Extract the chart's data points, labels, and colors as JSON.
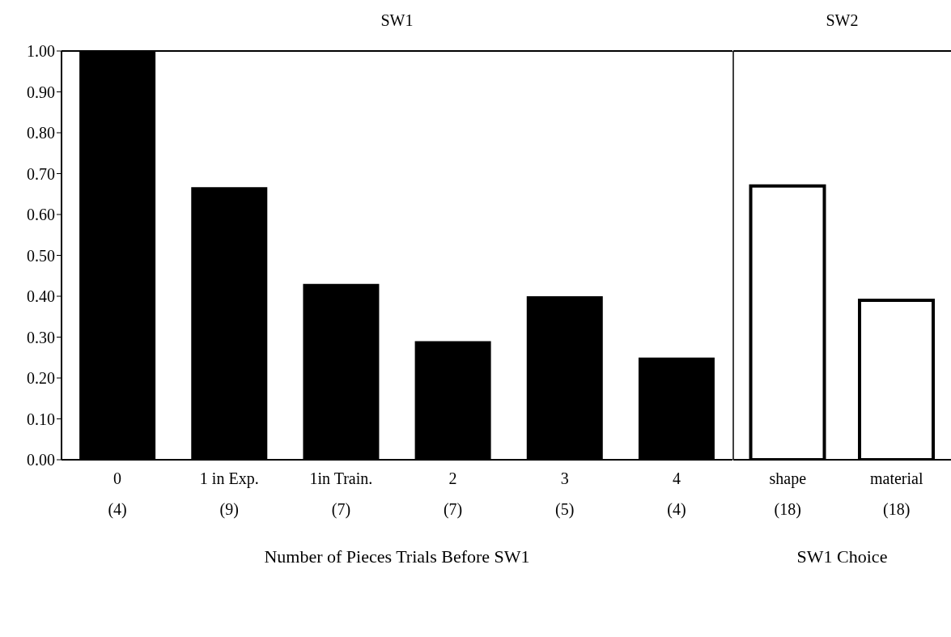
{
  "chart_data": [
    {
      "type": "bar",
      "title": "SW1",
      "xlabel": "Number of Pieces Trials Before SW1",
      "categories": [
        "0\n(4)",
        "1 in Exp.\n(9)",
        "1in Train.\n(7)",
        "2\n(7)",
        "3\n(5)",
        "4\n(4)"
      ],
      "values": [
        1.0,
        0.667,
        0.43,
        0.29,
        0.4,
        0.25
      ],
      "color": "#000000",
      "ylim": [
        0,
        1
      ],
      "yticks": [
        {
          "value": 0,
          "label": "0.00"
        },
        {
          "value": 0.1,
          "label": "0.10"
        },
        {
          "value": 0.2,
          "label": "0.20"
        },
        {
          "value": 0.3,
          "label": "0.30"
        },
        {
          "value": 0.4,
          "label": "0.40"
        },
        {
          "value": 0.5,
          "label": "0.50"
        },
        {
          "value": 0.6,
          "label": "0.60"
        },
        {
          "value": 0.7,
          "label": "0.70"
        },
        {
          "value": 0.8,
          "label": "0.80"
        },
        {
          "value": 0.9,
          "label": "0.90"
        },
        {
          "value": 1,
          "label": "1.00"
        }
      ],
      "grid": false
    },
    {
      "type": "bar",
      "title": "SW2",
      "xlabel": "SW1 Choice",
      "categories": [
        "shape\n(18)",
        "material\n(18)"
      ],
      "values": [
        0.67,
        0.39
      ],
      "color": "#ffffff",
      "ylim": [
        0,
        1
      ],
      "tick_labels": "x",
      "grid": false
    }
  ]
}
